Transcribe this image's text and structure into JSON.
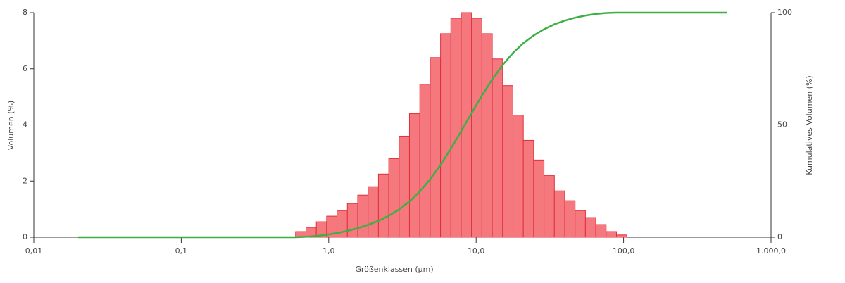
{
  "chart_data": {
    "type": "histogram",
    "xlabel": "Größenklassen (µm)",
    "ylabel": "Volumen (%)",
    "y2label": "Kumulatives Volumen (%)",
    "xscale": "log",
    "xlim": [
      0.01,
      1000
    ],
    "xticks": [
      {
        "value": 0.01,
        "label": "0,01"
      },
      {
        "value": 0.1,
        "label": "0,1"
      },
      {
        "value": 1,
        "label": "1,0"
      },
      {
        "value": 10,
        "label": "10,0"
      },
      {
        "value": 100,
        "label": "100,0"
      },
      {
        "value": 1000,
        "label": "1.000,0"
      }
    ],
    "ylim": [
      0,
      8
    ],
    "yticks": [
      0,
      2,
      4,
      6,
      8
    ],
    "y2lim": [
      0,
      100
    ],
    "y2ticks": [
      0,
      50,
      100
    ],
    "color": "#f5787e",
    "edgecolor": "#e0303a",
    "bins": [
      0.596,
      0.701,
      0.824,
      0.968,
      1.138,
      1.338,
      1.573,
      1.849,
      2.174,
      2.555,
      3.003,
      3.529,
      4.149,
      4.876,
      5.732,
      6.737,
      7.919,
      9.309,
      10.94,
      12.86,
      15.12,
      17.77,
      20.89,
      24.55,
      28.86,
      33.93,
      39.88,
      46.88,
      55.1,
      64.77,
      76.13,
      89.48,
      105.2
    ],
    "values": [
      0.2,
      0.35,
      0.55,
      0.75,
      0.95,
      1.2,
      1.5,
      1.8,
      2.25,
      2.8,
      3.6,
      4.4,
      5.45,
      6.4,
      7.25,
      7.8,
      8.0,
      7.8,
      7.25,
      6.35,
      5.4,
      4.35,
      3.45,
      2.75,
      2.2,
      1.65,
      1.3,
      0.95,
      0.7,
      0.45,
      0.2,
      0.08
    ],
    "overlay": {
      "type": "line",
      "axis": "y2",
      "color": "#3cb043",
      "x": [
        0.02,
        0.596,
        0.701,
        0.824,
        0.968,
        1.138,
        1.338,
        1.573,
        1.849,
        2.174,
        2.555,
        3.003,
        3.529,
        4.149,
        4.876,
        5.732,
        6.737,
        7.919,
        9.309,
        10.94,
        12.86,
        15.12,
        17.77,
        20.89,
        24.55,
        28.86,
        33.93,
        39.88,
        46.88,
        55.1,
        64.77,
        76.13,
        89.48,
        105.2,
        500
      ],
      "values": [
        0,
        0,
        0.2,
        0.55,
        1.1,
        1.85,
        2.8,
        4.0,
        5.5,
        7.3,
        9.55,
        12.35,
        15.95,
        20.35,
        25.8,
        32.2,
        39.45,
        47.25,
        55.25,
        63.05,
        70.3,
        76.65,
        82.05,
        86.4,
        89.85,
        92.6,
        94.8,
        96.45,
        97.75,
        98.7,
        99.4,
        99.85,
        100,
        100,
        100
      ]
    }
  }
}
